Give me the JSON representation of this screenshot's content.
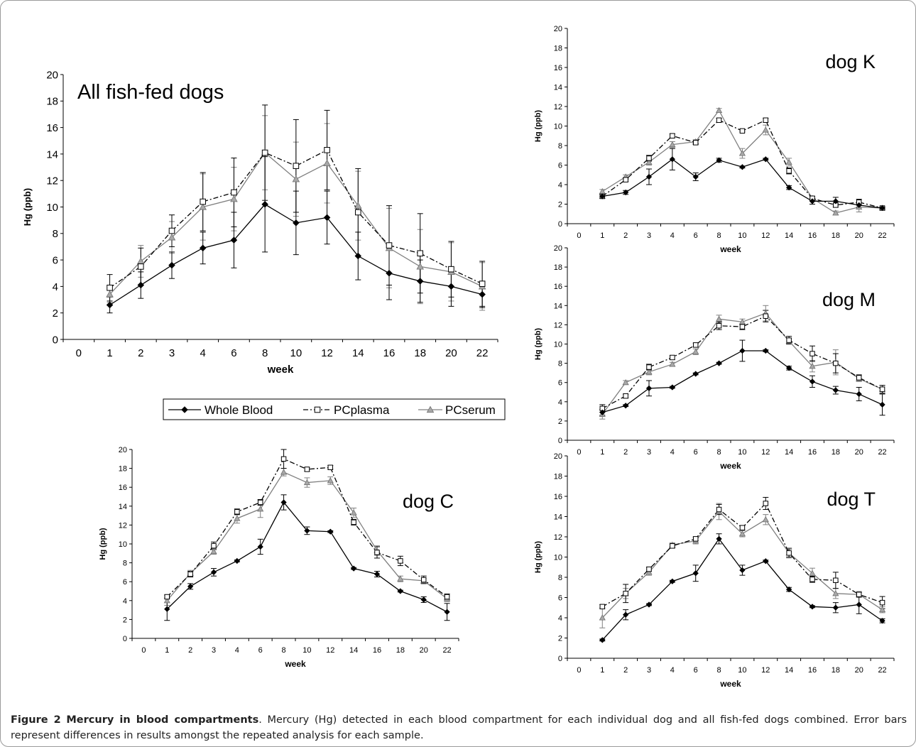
{
  "figure": {
    "caption_label": "Figure 2",
    "caption_title": "Mercury in blood compartments",
    "caption_text": ". Mercury (Hg) detected in each blood compartment for each individual dog and all fish-fed dogs combined. Error bars represent differences in results amongst the repeated analysis for each sample."
  },
  "legend": {
    "position": "below main panel",
    "items": [
      {
        "label": "Whole Blood",
        "series_key": "whole_blood"
      },
      {
        "label": "PCplasma",
        "series_key": "pc_plasma"
      },
      {
        "label": "PCserum",
        "series_key": "pc_serum"
      }
    ]
  },
  "series_style": {
    "whole_blood": {
      "line": "#000000",
      "marker": "diamond-filled",
      "dash": "solid"
    },
    "pc_plasma": {
      "line": "#000000",
      "marker": "square-open",
      "dash": "dash-dot"
    },
    "pc_serum": {
      "line": "#808080",
      "marker": "triangle-gray",
      "dash": "solid"
    }
  },
  "chart_data": [
    {
      "id": "all",
      "type": "line",
      "title": "All fish-fed dogs",
      "xlabel": "week",
      "ylabel": "Hg (ppb)",
      "categories": [
        "0",
        "1",
        "2",
        "3",
        "4",
        "6",
        "8",
        "10",
        "12",
        "14",
        "16",
        "18",
        "20",
        "22"
      ],
      "ylim": [
        0,
        20
      ],
      "yticks": [
        0,
        2,
        4,
        6,
        8,
        10,
        12,
        14,
        16,
        18,
        20
      ],
      "series": [
        {
          "name": "Whole Blood",
          "key": "whole_blood",
          "values": [
            null,
            2.6,
            4.1,
            5.6,
            6.9,
            7.5,
            10.2,
            8.8,
            9.2,
            6.3,
            5.0,
            4.4,
            4.0,
            3.4
          ],
          "errors": [
            null,
            0.6,
            1.0,
            1.0,
            1.2,
            2.1,
            3.6,
            2.4,
            2.0,
            1.8,
            2.0,
            1.6,
            1.5,
            1.0
          ]
        },
        {
          "name": "PCplasma",
          "key": "pc_plasma",
          "values": [
            null,
            3.9,
            5.5,
            8.2,
            10.4,
            11.1,
            14.1,
            13.1,
            14.3,
            9.6,
            7.1,
            6.5,
            5.3,
            4.2
          ],
          "errors": [
            null,
            1.0,
            1.4,
            1.2,
            2.2,
            2.6,
            3.6,
            3.5,
            3.0,
            3.3,
            3.0,
            3.0,
            2.1,
            1.7
          ]
        },
        {
          "name": "PCserum",
          "key": "pc_serum",
          "values": [
            null,
            3.4,
            5.9,
            7.7,
            10.0,
            10.6,
            14.1,
            12.1,
            13.3,
            10.1,
            6.9,
            5.5,
            5.1,
            4.0
          ],
          "errors": [
            null,
            0.6,
            1.2,
            1.2,
            2.5,
            2.4,
            2.8,
            2.8,
            3.0,
            2.6,
            3.0,
            2.8,
            2.2,
            1.8
          ]
        }
      ]
    },
    {
      "id": "dogK",
      "type": "line",
      "title": "dog K",
      "xlabel": "week",
      "ylabel": "Hg (ppb)",
      "categories": [
        "0",
        "1",
        "2",
        "3",
        "4",
        "6",
        "8",
        "10",
        "12",
        "14",
        "16",
        "18",
        "20",
        "22"
      ],
      "ylim": [
        0,
        20
      ],
      "yticks": [
        0,
        2,
        4,
        6,
        8,
        10,
        12,
        14,
        16,
        18,
        20
      ],
      "series": [
        {
          "name": "Whole Blood",
          "key": "whole_blood",
          "values": [
            null,
            2.8,
            3.2,
            4.8,
            6.6,
            4.8,
            6.5,
            5.8,
            6.6,
            3.7,
            2.3,
            2.3,
            1.9,
            1.6
          ],
          "errors": [
            null,
            0.2,
            0.2,
            0.8,
            1.1,
            0.4,
            0.2,
            0.1,
            0.1,
            0.2,
            0.3,
            0.4,
            0.2,
            0.1
          ]
        },
        {
          "name": "PCplasma",
          "key": "pc_plasma",
          "values": [
            null,
            2.8,
            4.5,
            6.7,
            9.0,
            8.3,
            10.6,
            9.5,
            10.6,
            5.4,
            2.6,
            1.9,
            2.2,
            1.6
          ],
          "errors": [
            null,
            0.2,
            0.2,
            0.3,
            0.2,
            0.2,
            0.2,
            0.1,
            0.2,
            0.3,
            0.2,
            0.2,
            0.3,
            0.1
          ]
        },
        {
          "name": "PCserum",
          "key": "pc_serum",
          "values": [
            null,
            3.3,
            4.8,
            6.3,
            8.1,
            8.4,
            11.6,
            7.2,
            9.6,
            6.3,
            2.6,
            1.1,
            1.7,
            1.6
          ],
          "errors": [
            null,
            0.2,
            0.2,
            0.3,
            0.3,
            0.2,
            0.2,
            0.5,
            0.5,
            0.4,
            0.2,
            0.2,
            0.5,
            0.1
          ]
        }
      ]
    },
    {
      "id": "dogM",
      "type": "line",
      "title": "dog M",
      "xlabel": "week",
      "ylabel": "Hg (ppb)",
      "categories": [
        "0",
        "1",
        "2",
        "3",
        "4",
        "6",
        "8",
        "10",
        "12",
        "14",
        "16",
        "18",
        "20",
        "22"
      ],
      "ylim": [
        0,
        20
      ],
      "yticks": [
        0,
        2,
        4,
        6,
        8,
        10,
        12,
        14,
        16,
        18,
        20
      ],
      "series": [
        {
          "name": "Whole Blood",
          "key": "whole_blood",
          "values": [
            null,
            2.9,
            3.6,
            5.4,
            5.5,
            6.9,
            8.0,
            9.3,
            9.3,
            7.5,
            6.1,
            5.2,
            4.8,
            3.7
          ],
          "errors": [
            null,
            0.3,
            0.1,
            0.8,
            0.1,
            0.1,
            0.1,
            1.1,
            0.1,
            0.2,
            0.6,
            0.4,
            0.7,
            1.1
          ]
        },
        {
          "name": "PCplasma",
          "key": "pc_plasma",
          "values": [
            null,
            3.3,
            4.6,
            7.6,
            8.6,
            9.9,
            11.9,
            11.8,
            12.9,
            10.4,
            9.0,
            8.0,
            6.5,
            5.3
          ],
          "errors": [
            null,
            0.4,
            0.2,
            0.3,
            0.2,
            0.2,
            0.4,
            0.3,
            0.6,
            0.4,
            0.8,
            1.0,
            0.3,
            0.4
          ]
        },
        {
          "name": "PCserum",
          "key": "pc_serum",
          "values": [
            null,
            2.7,
            6.0,
            7.1,
            7.9,
            9.2,
            12.6,
            12.3,
            13.2,
            10.3,
            7.7,
            8.1,
            6.4,
            5.3
          ],
          "errors": [
            null,
            0.5,
            0.2,
            0.3,
            0.2,
            0.3,
            0.4,
            0.3,
            0.8,
            0.3,
            0.6,
            1.3,
            0.3,
            0.4
          ]
        }
      ]
    },
    {
      "id": "dogC",
      "type": "line",
      "title": "dog C",
      "xlabel": "week",
      "ylabel": "Hg (ppb)",
      "categories": [
        "0",
        "1",
        "2",
        "3",
        "4",
        "6",
        "8",
        "10",
        "12",
        "14",
        "16",
        "18",
        "20",
        "22"
      ],
      "ylim": [
        0,
        20
      ],
      "yticks": [
        0,
        2,
        4,
        6,
        8,
        10,
        12,
        14,
        16,
        18,
        20
      ],
      "series": [
        {
          "name": "Whole Blood",
          "key": "whole_blood",
          "values": [
            null,
            3.1,
            5.5,
            7.0,
            8.2,
            9.7,
            14.4,
            11.4,
            11.3,
            7.4,
            6.8,
            5.0,
            4.1,
            2.8
          ],
          "errors": [
            null,
            1.2,
            0.3,
            0.4,
            0.1,
            0.8,
            0.8,
            0.4,
            0.1,
            0.1,
            0.3,
            0.1,
            0.3,
            0.9
          ]
        },
        {
          "name": "PCplasma",
          "key": "pc_plasma",
          "values": [
            null,
            4.4,
            6.8,
            9.8,
            13.4,
            14.4,
            19.0,
            17.9,
            18.1,
            12.3,
            9.1,
            8.2,
            6.2,
            4.4
          ],
          "errors": [
            null,
            0.2,
            0.3,
            0.4,
            0.3,
            0.3,
            1.0,
            0.2,
            0.2,
            0.3,
            0.6,
            0.5,
            0.4,
            0.3
          ]
        },
        {
          "name": "PCserum",
          "key": "pc_serum",
          "values": [
            null,
            4.0,
            6.9,
            9.2,
            12.7,
            13.7,
            17.6,
            16.5,
            16.7,
            13.3,
            9.3,
            6.3,
            6.1,
            4.2
          ],
          "errors": [
            null,
            0.5,
            0.3,
            0.3,
            0.5,
            0.9,
            0.4,
            0.5,
            0.4,
            0.5,
            0.5,
            0.3,
            0.3,
            0.3
          ]
        }
      ]
    },
    {
      "id": "dogT",
      "type": "line",
      "title": "dog T",
      "xlabel": "week",
      "ylabel": "Hg (ppb)",
      "categories": [
        "0",
        "1",
        "2",
        "3",
        "4",
        "6",
        "8",
        "10",
        "12",
        "14",
        "16",
        "18",
        "20",
        "22"
      ],
      "ylim": [
        0,
        20
      ],
      "yticks": [
        0,
        2,
        4,
        6,
        8,
        10,
        12,
        14,
        16,
        18,
        20
      ],
      "series": [
        {
          "name": "Whole Blood",
          "key": "whole_blood",
          "values": [
            null,
            1.8,
            4.3,
            5.3,
            7.6,
            8.4,
            11.8,
            8.7,
            9.6,
            6.8,
            5.1,
            5.0,
            5.3,
            3.7
          ],
          "errors": [
            null,
            0.1,
            0.5,
            0.1,
            0.1,
            0.8,
            0.5,
            0.5,
            0.1,
            0.2,
            0.1,
            0.5,
            0.9,
            0.2
          ]
        },
        {
          "name": "PCplasma",
          "key": "pc_plasma",
          "values": [
            null,
            5.1,
            6.4,
            8.8,
            11.1,
            11.8,
            14.7,
            12.9,
            15.3,
            10.4,
            7.8,
            7.7,
            6.3,
            5.5
          ],
          "errors": [
            null,
            0.2,
            0.9,
            0.2,
            0.2,
            0.2,
            0.5,
            0.2,
            0.6,
            0.4,
            0.3,
            0.8,
            0.2,
            0.6
          ]
        },
        {
          "name": "PCserum",
          "key": "pc_serum",
          "values": [
            null,
            4.0,
            6.4,
            8.5,
            11.2,
            11.6,
            14.5,
            12.3,
            13.7,
            10.4,
            8.4,
            6.4,
            6.3,
            4.8
          ],
          "errors": [
            null,
            1.0,
            0.5,
            0.3,
            0.2,
            0.3,
            0.8,
            0.3,
            0.5,
            0.5,
            0.5,
            0.5,
            0.3,
            0.3
          ]
        }
      ]
    }
  ]
}
